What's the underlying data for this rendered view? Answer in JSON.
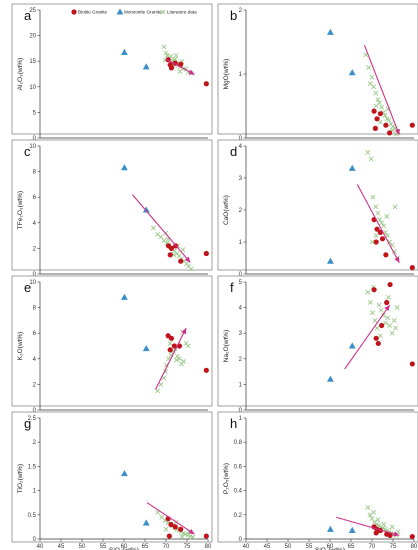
{
  "colors": {
    "biotite": "#c0141b",
    "monzonite": "#3a8fc8",
    "literature": "#9cc88a",
    "trend": "#d0308c"
  },
  "legend": [
    {
      "label": "Biotite Granite",
      "marker": "circle"
    },
    {
      "label": "Monzonite Granite",
      "marker": "triangle"
    },
    {
      "label": "Literature data",
      "marker": "cross"
    }
  ],
  "chart_data": [
    {
      "type": "scatter",
      "letter": "a",
      "ylabel": "Al₂O₃(wt%)",
      "xlabel": "",
      "xlim": [
        40,
        80
      ],
      "ylim": [
        0,
        25
      ],
      "xticks": [],
      "yticks": [
        0,
        5,
        10,
        15,
        20,
        25
      ],
      "series": [
        {
          "name": "Biotite Granite",
          "marker": "circle",
          "x": [
            70.5,
            71.3,
            72.2,
            73.5,
            79.6,
            71.0
          ],
          "y": [
            15.3,
            13.7,
            14.6,
            14.4,
            10.6,
            14.3
          ]
        },
        {
          "name": "Monzonite Granite",
          "marker": "triangle",
          "x": [
            60.1,
            65.3
          ],
          "y": [
            16.7,
            13.9
          ]
        },
        {
          "name": "Literature data",
          "marker": "cross",
          "x": [
            69.5,
            70.0,
            70.3,
            70.8,
            71.1,
            71.5,
            71.9,
            72.2,
            72.6,
            73.0,
            73.4,
            73.8,
            74.3,
            74.8,
            75.3,
            76.0,
            72.4,
            71.7,
            73.3,
            69.8
          ],
          "y": [
            17.8,
            16.6,
            16.1,
            15.6,
            15.9,
            15.1,
            14.9,
            15.4,
            14.6,
            14.2,
            13.9,
            14.9,
            13.6,
            13.4,
            12.9,
            12.6,
            16.1,
            14.1,
            13.0,
            15.2
          ]
        }
      ],
      "trend": {
        "x": [
          70.0,
          76.8
        ],
        "y": [
          15.4,
          12.4
        ]
      }
    },
    {
      "type": "scatter",
      "letter": "b",
      "ylabel": "MgO(wt%)",
      "xlabel": "",
      "xlim": [
        40,
        80
      ],
      "ylim": [
        0,
        2
      ],
      "xticks": [],
      "yticks": [
        0,
        1,
        2
      ],
      "series": [
        {
          "name": "Biotite Granite",
          "marker": "circle",
          "x": [
            70.5,
            71.2,
            72.0,
            73.3,
            74.2,
            70.8,
            79.6
          ],
          "y": [
            0.42,
            0.3,
            0.38,
            0.2,
            0.08,
            0.15,
            0.2
          ]
        },
        {
          "name": "Monzonite Granite",
          "marker": "triangle",
          "x": [
            60.1,
            65.3
          ],
          "y": [
            1.65,
            1.02
          ]
        },
        {
          "name": "Literature data",
          "marker": "cross",
          "x": [
            68.5,
            69.2,
            70.0,
            70.4,
            70.9,
            71.4,
            71.8,
            72.3,
            72.7,
            73.1,
            73.6,
            74.0,
            74.5,
            75.0,
            75.6,
            76.2,
            72.0,
            73.8,
            69.6,
            71.0,
            74.8,
            75.8
          ],
          "y": [
            1.3,
            1.1,
            0.95,
            0.8,
            0.7,
            0.6,
            0.55,
            0.48,
            0.4,
            0.35,
            0.3,
            0.28,
            0.22,
            0.18,
            0.15,
            0.1,
            0.25,
            0.45,
            0.85,
            0.5,
            0.12,
            0.06
          ]
        }
      ],
      "trend": {
        "x": [
          68.2,
          76.5
        ],
        "y": [
          1.45,
          0.05
        ]
      }
    },
    {
      "type": "scatter",
      "letter": "c",
      "ylabel": "TFe₂O₃(wt%)",
      "xlabel": "",
      "xlim": [
        40,
        80
      ],
      "ylim": [
        0,
        10
      ],
      "xticks": [],
      "yticks": [
        0,
        2,
        4,
        6,
        8,
        10
      ],
      "series": [
        {
          "name": "Biotite Granite",
          "marker": "circle",
          "x": [
            70.6,
            71.3,
            72.3,
            73.5,
            71.0,
            79.6
          ],
          "y": [
            2.2,
            2.0,
            2.2,
            1.0,
            1.5,
            1.6
          ]
        },
        {
          "name": "Monzonite Granite",
          "marker": "triangle",
          "x": [
            60.1,
            65.3
          ],
          "y": [
            8.3,
            5.0
          ]
        },
        {
          "name": "Literature data",
          "marker": "cross",
          "x": [
            67.0,
            68.0,
            68.8,
            69.5,
            70.2,
            70.8,
            71.5,
            72.0,
            72.6,
            73.1,
            73.7,
            74.3,
            74.9,
            75.4,
            76.0,
            72.8,
            69.9,
            71.8,
            74.0,
            70.5
          ],
          "y": [
            3.6,
            3.1,
            2.9,
            2.6,
            2.4,
            2.3,
            2.1,
            1.8,
            1.6,
            1.4,
            1.2,
            1.0,
            0.8,
            0.6,
            0.4,
            2.2,
            3.2,
            1.5,
            1.9,
            2.7
          ]
        }
      ],
      "trend": {
        "x": [
          62.0,
          75.8
        ],
        "y": [
          6.2,
          0.9
        ]
      }
    },
    {
      "type": "scatter",
      "letter": "d",
      "ylabel": "CaO(wt%)",
      "xlabel": "",
      "xlim": [
        40,
        80
      ],
      "ylim": [
        0,
        4
      ],
      "xticks": [],
      "yticks": [
        0,
        1,
        2,
        3,
        4
      ],
      "series": [
        {
          "name": "Biotite Granite",
          "marker": "circle",
          "x": [
            70.5,
            71.2,
            72.0,
            73.3,
            71.0,
            79.6,
            72.5
          ],
          "y": [
            1.7,
            1.4,
            1.3,
            0.6,
            1.0,
            0.2,
            1.1
          ]
        },
        {
          "name": "Monzonite Granite",
          "marker": "triangle",
          "x": [
            60.1,
            65.3
          ],
          "y": [
            0.4,
            3.3
          ]
        },
        {
          "name": "Literature data",
          "marker": "cross",
          "x": [
            69.0,
            69.8,
            70.2,
            70.9,
            71.4,
            71.8,
            72.3,
            72.8,
            73.2,
            73.7,
            74.2,
            74.8,
            75.3,
            76.0,
            71.0,
            73.5,
            75.5,
            70.0
          ],
          "y": [
            3.8,
            3.6,
            2.4,
            2.1,
            1.9,
            1.7,
            1.6,
            1.5,
            1.3,
            1.2,
            1.0,
            0.9,
            0.7,
            0.5,
            1.2,
            1.8,
            2.1,
            1.0
          ]
        }
      ],
      "trend": {
        "x": [
          66.5,
          76.5
        ],
        "y": [
          2.8,
          0.35
        ]
      }
    },
    {
      "type": "scatter",
      "letter": "e",
      "ylabel": "K₂O(wt%)",
      "xlabel": "",
      "xlim": [
        40,
        80
      ],
      "ylim": [
        0,
        10
      ],
      "xticks": [],
      "yticks": [
        0,
        2,
        4,
        6,
        8,
        10
      ],
      "series": [
        {
          "name": "Biotite Granite",
          "marker": "circle",
          "x": [
            70.5,
            71.3,
            72.0,
            73.2,
            71.0,
            79.6
          ],
          "y": [
            5.8,
            5.6,
            5.0,
            5.0,
            4.7,
            3.1
          ]
        },
        {
          "name": "Monzonite Granite",
          "marker": "triangle",
          "x": [
            60.1,
            65.3
          ],
          "y": [
            8.8,
            4.8
          ]
        },
        {
          "name": "Literature data",
          "marker": "cross",
          "x": [
            68.0,
            68.8,
            69.5,
            70.1,
            70.6,
            71.2,
            71.7,
            72.2,
            72.7,
            73.2,
            73.7,
            74.2,
            74.8,
            75.3,
            69.9,
            72.5,
            74.0,
            71.0
          ],
          "y": [
            1.5,
            2.0,
            2.5,
            3.5,
            4.0,
            4.3,
            4.6,
            4.8,
            4.2,
            4.0,
            3.6,
            3.8,
            5.2,
            5.0,
            3.0,
            3.9,
            6.1,
            5.2
          ]
        }
      ],
      "trend": {
        "x": [
          67.5,
          74.8
        ],
        "y": [
          1.6,
          6.4
        ]
      }
    },
    {
      "type": "scatter",
      "letter": "f",
      "ylabel": "Na₂O(wt%)",
      "xlabel": "",
      "xlim": [
        40,
        80
      ],
      "ylim": [
        0,
        5
      ],
      "xticks": [],
      "yticks": [
        0,
        1,
        2,
        3,
        4,
        5
      ],
      "series": [
        {
          "name": "Biotite Granite",
          "marker": "circle",
          "x": [
            70.5,
            71.0,
            71.5,
            72.3,
            73.5,
            74.3,
            79.6
          ],
          "y": [
            4.7,
            2.8,
            2.6,
            3.3,
            4.2,
            4.9,
            1.8
          ]
        },
        {
          "name": "Monzonite Granite",
          "marker": "triangle",
          "x": [
            60.1,
            65.3
          ],
          "y": [
            1.2,
            2.5
          ]
        },
        {
          "name": "Literature data",
          "marker": "cross",
          "x": [
            69.0,
            69.6,
            70.1,
            70.7,
            71.2,
            71.7,
            72.2,
            72.7,
            73.2,
            73.7,
            74.2,
            74.8,
            75.3,
            76.0,
            70.3,
            72.0,
            73.9,
            75.6
          ],
          "y": [
            4.6,
            4.2,
            3.8,
            3.5,
            3.2,
            4.1,
            3.9,
            3.7,
            3.4,
            3.6,
            3.3,
            3.0,
            3.5,
            4.0,
            4.8,
            2.9,
            4.4,
            3.2
          ]
        }
      ],
      "trend": {
        "x": [
          63.5,
          74.2
        ],
        "y": [
          1.6,
          4.1
        ]
      }
    },
    {
      "type": "scatter",
      "letter": "g",
      "ylabel": "TiO₂(wt%)",
      "xlabel": "SiO₂(wt%)",
      "xlim": [
        40,
        80
      ],
      "ylim": [
        0,
        2.5
      ],
      "xticks": [
        40,
        45,
        50,
        55,
        60,
        65,
        70,
        75,
        80
      ],
      "yticks": [
        0,
        0.5,
        1,
        1.5,
        2,
        2.5
      ],
      "series": [
        {
          "name": "Biotite Granite",
          "marker": "circle",
          "x": [
            70.5,
            71.2,
            72.2,
            73.5,
            70.8,
            79.6
          ],
          "y": [
            0.42,
            0.3,
            0.25,
            0.2,
            0.06,
            0.06
          ]
        },
        {
          "name": "Monzonite Granite",
          "marker": "triangle",
          "x": [
            60.1,
            65.3
          ],
          "y": [
            1.35,
            0.33
          ]
        },
        {
          "name": "Literature data",
          "marker": "cross",
          "x": [
            68.0,
            69.0,
            69.8,
            70.5,
            71.1,
            71.6,
            72.1,
            72.6,
            73.1,
            73.6,
            74.1,
            74.6,
            75.2,
            75.8,
            76.4,
            72.4,
            70.0,
            73.8,
            75.5
          ],
          "y": [
            0.55,
            0.45,
            0.38,
            0.33,
            0.3,
            0.27,
            0.23,
            0.2,
            0.18,
            0.15,
            0.12,
            0.1,
            0.08,
            0.06,
            0.04,
            0.35,
            0.2,
            0.05,
            0.15
          ]
        }
      ],
      "trend": {
        "x": [
          65.5,
          76.8
        ],
        "y": [
          0.75,
          0.1
        ]
      }
    },
    {
      "type": "scatter",
      "letter": "h",
      "ylabel": "P₂O₅(wt%)",
      "xlabel": "SiO₂(wt%)",
      "xlim": [
        40,
        80
      ],
      "ylim": [
        0,
        1
      ],
      "xticks": [
        40,
        45,
        50,
        55,
        60,
        65,
        70,
        75,
        80
      ],
      "yticks": [
        0,
        0.2,
        0.4,
        0.6,
        0.8,
        1
      ],
      "series": [
        {
          "name": "Biotite Granite",
          "marker": "circle",
          "x": [
            70.5,
            71.2,
            72.0,
            73.5,
            71.0,
            79.6,
            74.3
          ],
          "y": [
            0.1,
            0.08,
            0.07,
            0.04,
            0.05,
            0.02,
            0.03
          ]
        },
        {
          "name": "Monzonite Granite",
          "marker": "triangle",
          "x": [
            60.1,
            65.3
          ],
          "y": [
            0.08,
            0.07
          ]
        },
        {
          "name": "Literature data",
          "marker": "cross",
          "x": [
            69.0,
            69.5,
            70.0,
            70.6,
            71.1,
            71.6,
            72.1,
            72.6,
            73.1,
            73.6,
            74.1,
            74.6,
            75.2,
            75.8,
            70.4,
            72.8,
            74.8,
            71.4,
            76.2
          ],
          "y": [
            0.26,
            0.2,
            0.17,
            0.14,
            0.12,
            0.11,
            0.1,
            0.09,
            0.08,
            0.07,
            0.06,
            0.05,
            0.04,
            0.03,
            0.22,
            0.12,
            0.1,
            0.16,
            0.06
          ]
        }
      ],
      "trend": {
        "x": [
          61.5,
          76.5
        ],
        "y": [
          0.18,
          0.03
        ]
      }
    }
  ]
}
